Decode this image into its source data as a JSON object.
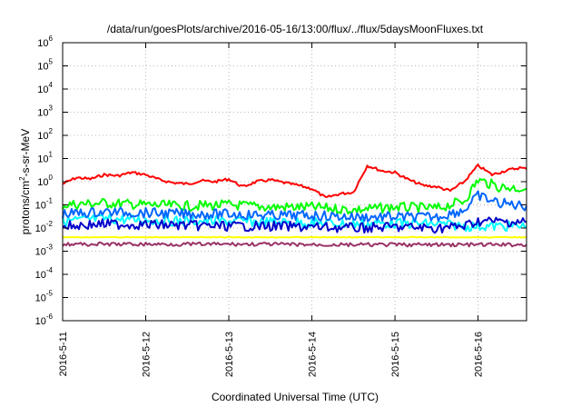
{
  "chart_data": {
    "type": "line",
    "title": "/data/run/goesPlots/archive/2016-05-16/13:00/flux/../flux/5daysMoonFluxes.txt",
    "xlabel": "Coordinated Universal Time (UTC)",
    "ylabel": "protons/cm2-s-sr-MeV",
    "ylabel_parts": [
      "protons/cm",
      "2",
      "-s-sr-MeV"
    ],
    "y_scale": "log",
    "ylim": [
      "1e-6",
      "1e6"
    ],
    "xlim": [
      "2016-05-11 00:00",
      "2016-05-16 14:00"
    ],
    "grid": true,
    "x_ticks": [
      "2016-5-11",
      "2016-5-12",
      "2016-5-13",
      "2016-5-14",
      "2016-5-15",
      "2016-5-16"
    ],
    "y_ticks": [
      {
        "mantissa": "10",
        "exponent": "-6"
      },
      {
        "mantissa": "10",
        "exponent": "-5"
      },
      {
        "mantissa": "10",
        "exponent": "-4"
      },
      {
        "mantissa": "10",
        "exponent": "-3"
      },
      {
        "mantissa": "10",
        "exponent": "-2"
      },
      {
        "mantissa": "10",
        "exponent": "-1"
      },
      {
        "mantissa": "10",
        "exponent": "0"
      },
      {
        "mantissa": "10",
        "exponent": "1"
      },
      {
        "mantissa": "10",
        "exponent": "2"
      },
      {
        "mantissa": "10",
        "exponent": "3"
      },
      {
        "mantissa": "10",
        "exponent": "4"
      },
      {
        "mantissa": "10",
        "exponent": "5"
      },
      {
        "mantissa": "10",
        "exponent": "6"
      }
    ],
    "series": [
      {
        "color": "#ff0000",
        "x": [
          "2016-05-11 00:00",
          "2016-05-11 04:00",
          "2016-05-11 08:00",
          "2016-05-11 12:00",
          "2016-05-11 16:00",
          "2016-05-11 20:00",
          "2016-05-12 00:00",
          "2016-05-12 04:00",
          "2016-05-12 08:00",
          "2016-05-12 12:00",
          "2016-05-12 16:00",
          "2016-05-12 20:00",
          "2016-05-13 00:00",
          "2016-05-13 04:00",
          "2016-05-13 08:00",
          "2016-05-13 12:00",
          "2016-05-13 16:00",
          "2016-05-13 20:00",
          "2016-05-14 00:00",
          "2016-05-14 04:00",
          "2016-05-14 08:00",
          "2016-05-14 12:00",
          "2016-05-14 16:00",
          "2016-05-14 20:00",
          "2016-05-15 00:00",
          "2016-05-15 04:00",
          "2016-05-15 08:00",
          "2016-05-15 12:00",
          "2016-05-15 16:00",
          "2016-05-15 20:00",
          "2016-05-16 00:00",
          "2016-05-16 04:00",
          "2016-05-16 08:00",
          "2016-05-16 12:00",
          "2016-05-16 14:00"
        ],
        "y": [
          0.8,
          1.5,
          1.3,
          2.0,
          1.8,
          2.5,
          2.0,
          1.2,
          0.9,
          0.8,
          1.1,
          1.0,
          1.3,
          0.6,
          1.0,
          1.2,
          0.9,
          0.7,
          0.5,
          0.2,
          0.3,
          0.35,
          5.0,
          3.0,
          2.5,
          1.2,
          0.7,
          0.6,
          0.4,
          1.0,
          5.0,
          2.0,
          3.0,
          4.0,
          3.5
        ]
      },
      {
        "color": "#00ff00",
        "x": [
          "2016-05-11 00:00",
          "2016-05-11 12:00",
          "2016-05-12 00:00",
          "2016-05-12 12:00",
          "2016-05-13 00:00",
          "2016-05-13 12:00",
          "2016-05-14 00:00",
          "2016-05-14 12:00",
          "2016-05-15 00:00",
          "2016-05-15 12:00",
          "2016-05-15 20:00",
          "2016-05-16 00:00",
          "2016-05-16 06:00",
          "2016-05-16 14:00"
        ],
        "y": [
          0.1,
          0.12,
          0.1,
          0.09,
          0.1,
          0.08,
          0.08,
          0.06,
          0.08,
          0.07,
          0.15,
          1.2,
          0.6,
          0.5
        ]
      },
      {
        "color": "#00ffff",
        "x": [
          "2016-05-11 00:00",
          "2016-05-11 12:00",
          "2016-05-12 00:00",
          "2016-05-12 12:00",
          "2016-05-13 00:00",
          "2016-05-13 12:00",
          "2016-05-14 00:00",
          "2016-05-14 12:00",
          "2016-05-15 00:00",
          "2016-05-15 12:00",
          "2016-05-15 20:00",
          "2016-05-16 00:00",
          "2016-05-16 14:00"
        ],
        "y": [
          0.02,
          0.025,
          0.022,
          0.02,
          0.02,
          0.018,
          0.017,
          0.015,
          0.016,
          0.015,
          0.012,
          0.012,
          0.012
        ]
      },
      {
        "color": "#0066ff",
        "x": [
          "2016-05-11 00:00",
          "2016-05-11 12:00",
          "2016-05-12 00:00",
          "2016-05-12 12:00",
          "2016-05-13 00:00",
          "2016-05-13 12:00",
          "2016-05-14 00:00",
          "2016-05-14 12:00",
          "2016-05-15 00:00",
          "2016-05-15 12:00",
          "2016-05-15 20:00",
          "2016-05-16 00:00",
          "2016-05-16 06:00",
          "2016-05-16 14:00"
        ],
        "y": [
          0.04,
          0.05,
          0.045,
          0.04,
          0.04,
          0.035,
          0.035,
          0.03,
          0.03,
          0.03,
          0.06,
          0.25,
          0.12,
          0.09
        ]
      },
      {
        "color": "#0000cc",
        "x": [
          "2016-05-11 00:00",
          "2016-05-11 12:00",
          "2016-05-12 00:00",
          "2016-05-12 12:00",
          "2016-05-13 00:00",
          "2016-05-13 12:00",
          "2016-05-14 00:00",
          "2016-05-14 12:00",
          "2016-05-15 00:00",
          "2016-05-15 12:00",
          "2016-05-15 20:00",
          "2016-05-16 00:00",
          "2016-05-16 14:00"
        ],
        "y": [
          0.012,
          0.015,
          0.014,
          0.013,
          0.012,
          0.012,
          0.011,
          0.01,
          0.011,
          0.01,
          0.012,
          0.02,
          0.018
        ]
      },
      {
        "color": "#ffff00",
        "x": [
          "2016-05-11 00:00",
          "2016-05-12 00:00",
          "2016-05-13 00:00",
          "2016-05-14 00:00",
          "2016-05-15 00:00",
          "2016-05-16 00:00",
          "2016-05-16 14:00"
        ],
        "y": [
          0.004,
          0.004,
          0.004,
          0.004,
          0.004,
          0.004,
          0.004
        ]
      },
      {
        "color": "#993366",
        "x": [
          "2016-05-11 00:00",
          "2016-05-12 00:00",
          "2016-05-13 00:00",
          "2016-05-13 11:00",
          "2016-05-14 00:00",
          "2016-05-14 20:00",
          "2016-05-15 00:00",
          "2016-05-16 00:00",
          "2016-05-16 14:00"
        ],
        "y": [
          0.002,
          0.002,
          0.002,
          0.002,
          0.0019,
          0.0019,
          0.0019,
          0.0019,
          0.0019
        ]
      }
    ]
  }
}
